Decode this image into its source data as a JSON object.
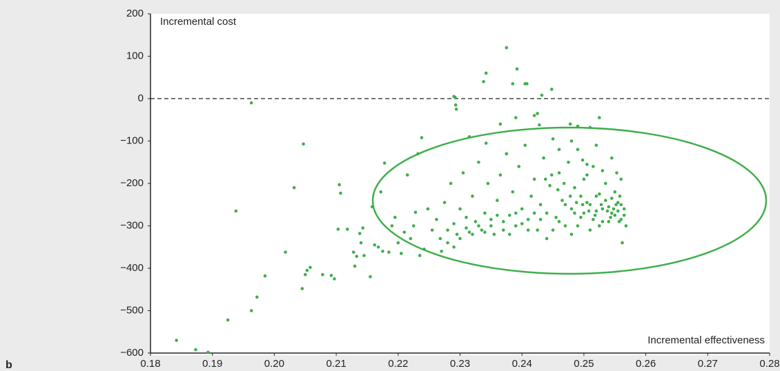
{
  "panel_label": "b",
  "chart_data": {
    "type": "scatter",
    "y_label": "Incremental cost",
    "x_label": "Incremental effectiveness",
    "color": "#3fae4a",
    "hline": 0,
    "xlim": [
      0.18,
      0.28
    ],
    "xticks": [
      0.18,
      0.19,
      {
        "value": 0.2,
        "label": "0.20"
      },
      0.21,
      0.22,
      0.23,
      0.24,
      0.25,
      0.26,
      0.27,
      0.28
    ],
    "ylim": [
      -600,
      200
    ],
    "yticks": [
      {
        "value": -600,
        "label": "−600"
      },
      {
        "value": -500,
        "label": "−500"
      },
      {
        "value": -400,
        "label": "−400"
      },
      {
        "value": -300,
        "label": "−300"
      },
      {
        "value": -200,
        "label": "−200"
      },
      {
        "value": -100,
        "label": "−100"
      },
      0,
      100,
      200
    ],
    "x": [
      0.1842,
      0.1873,
      0.1893,
      0.1925,
      0.1938,
      0.1963,
      0.1963,
      0.1972,
      0.1985,
      0.2018,
      0.2032,
      0.2045,
      0.2047,
      0.205,
      0.2053,
      0.2058,
      0.2078,
      0.2092,
      0.2097,
      0.2103,
      0.2105,
      0.2107,
      0.2118,
      0.2128,
      0.213,
      0.2133,
      0.2138,
      0.214,
      0.2143,
      0.2145,
      0.2155,
      0.2158,
      0.2162,
      0.2168,
      0.2172,
      0.2175,
      0.2178,
      0.2185,
      0.219,
      0.2195,
      0.22,
      0.2205,
      0.221,
      0.2215,
      0.222,
      0.2225,
      0.2228,
      0.2232,
      0.2235,
      0.2238,
      0.2242,
      0.2248,
      0.229,
      0.2292,
      0.2293,
      0.2294,
      0.2338,
      0.2342,
      0.2375,
      0.2385,
      0.2392,
      0.2405,
      0.2408,
      0.2432,
      0.2448,
      0.2342,
      0.2365,
      0.239,
      0.242,
      0.2425,
      0.2428,
      0.2478,
      0.249,
      0.251,
      0.2525,
      0.2315,
      0.2255,
      0.2262,
      0.2268,
      0.2275,
      0.228,
      0.2285,
      0.229,
      0.2295,
      0.23,
      0.2305,
      0.231,
      0.2315,
      0.232,
      0.2325,
      0.233,
      0.2335,
      0.234,
      0.2345,
      0.235,
      0.2355,
      0.236,
      0.2365,
      0.237,
      0.2375,
      0.238,
      0.2385,
      0.239,
      0.2395,
      0.24,
      0.2405,
      0.241,
      0.2415,
      0.242,
      0.2425,
      0.243,
      0.2435,
      0.244,
      0.2445,
      0.245,
      0.2455,
      0.246,
      0.2465,
      0.247,
      0.2475,
      0.248,
      0.2485,
      0.249,
      0.2495,
      0.25,
      0.2505,
      0.251,
      0.2515,
      0.252,
      0.2525,
      0.253,
      0.2535,
      0.254,
      0.2545,
      0.255,
      0.2555,
      0.256,
      0.2565,
      0.2568,
      0.2562,
      0.255,
      0.2545,
      0.254,
      0.2535,
      0.253,
      0.2525,
      0.252,
      0.2515,
      0.251,
      0.2505,
      0.25,
      0.2495,
      0.249,
      0.2485,
      0.248,
      0.247,
      0.246,
      0.245,
      0.244,
      0.243,
      0.242,
      0.241,
      0.24,
      0.239,
      0.238,
      0.237,
      0.236,
      0.235,
      0.234,
      0.233,
      0.232,
      0.231,
      0.23,
      0.229,
      0.228,
      0.227,
      0.2555,
      0.2558,
      0.2552,
      0.2548,
      0.256,
      0.2565,
      0.2557,
      0.2543,
      0.2538,
      0.2528,
      0.2518,
      0.2508,
      0.2498,
      0.2488,
      0.2478,
      0.2468,
      0.2458,
      0.2448,
      0.2438,
      0.2498,
      0.2505,
      0.253,
      0.2545,
      0.2553,
      0.256,
      0.252,
      0.248,
      0.246
    ],
    "y": [
      -570,
      -592,
      -598,
      -522,
      -265,
      -10,
      -500,
      -468,
      -418,
      -362,
      -210,
      -448,
      -107,
      -415,
      -405,
      -398,
      -415,
      -417,
      -425,
      -308,
      -203,
      -223,
      -308,
      -362,
      -395,
      -372,
      -318,
      -340,
      -305,
      -370,
      -420,
      -255,
      -345,
      -350,
      -220,
      -360,
      -152,
      -362,
      -300,
      -280,
      -340,
      -365,
      -315,
      -180,
      -330,
      -300,
      -268,
      -130,
      -370,
      -92,
      -355,
      -260,
      5,
      3,
      -15,
      -25,
      40,
      60,
      120,
      35,
      70,
      35,
      35,
      8,
      22,
      -105,
      -60,
      -45,
      -40,
      -35,
      -62,
      -60,
      -65,
      -68,
      -45,
      -90,
      -310,
      -285,
      -330,
      -245,
      -310,
      -200,
      -295,
      -320,
      -260,
      -175,
      -305,
      -315,
      -230,
      -290,
      -150,
      -310,
      -270,
      -200,
      -300,
      -320,
      -240,
      -180,
      -290,
      -130,
      -275,
      -220,
      -300,
      -160,
      -260,
      -110,
      -285,
      -230,
      -190,
      -310,
      -250,
      -140,
      -270,
      -205,
      -95,
      -280,
      -175,
      -240,
      -300,
      -150,
      -260,
      -210,
      -120,
      -280,
      -190,
      -245,
      -310,
      -160,
      -265,
      -225,
      -290,
      -200,
      -255,
      -235,
      -275,
      -245,
      -285,
      -260,
      -300,
      -340,
      -220,
      -270,
      -290,
      -240,
      -260,
      -300,
      -230,
      -285,
      -250,
      -180,
      -270,
      -230,
      -300,
      -270,
      -320,
      -250,
      -290,
      -310,
      -330,
      -285,
      -270,
      -310,
      -295,
      -270,
      -320,
      -310,
      -275,
      -285,
      -315,
      -300,
      -320,
      -280,
      -330,
      -350,
      -340,
      -360,
      -265,
      -230,
      -250,
      -260,
      -250,
      -275,
      -290,
      -280,
      -265,
      -250,
      -275,
      -265,
      -250,
      -245,
      -230,
      -200,
      -215,
      -180,
      -190,
      -145,
      -155,
      -170,
      -140,
      -175,
      -190,
      -110,
      -100,
      -120
    ]
  }
}
